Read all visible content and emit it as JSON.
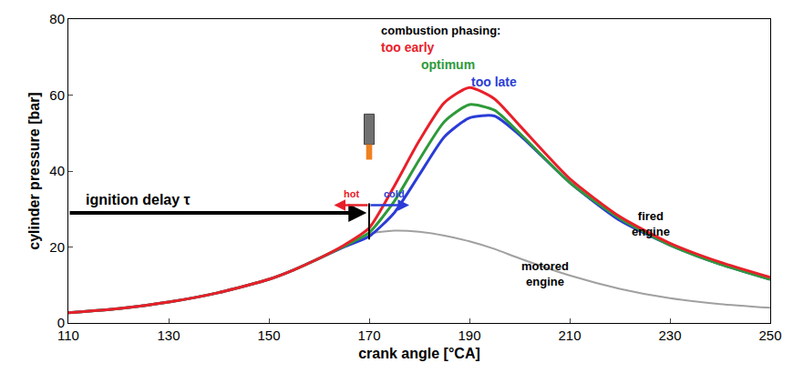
{
  "chart_data": {
    "type": "line",
    "xlabel": "crank angle [°CA]",
    "ylabel": "cylinder pressure [bar]",
    "x": [
      110,
      120,
      130,
      140,
      150,
      155,
      160,
      165,
      170,
      175,
      180,
      185,
      190,
      195,
      200,
      210,
      220,
      230,
      240,
      250
    ],
    "series": [
      {
        "name": "motored engine",
        "color": "#a0a0a0",
        "values": [
          2.7,
          3.8,
          5.5,
          8,
          11.5,
          14,
          17,
          20,
          23.5,
          24.3,
          24,
          23,
          21.5,
          19.5,
          17,
          12.5,
          9,
          6.5,
          5,
          4
        ]
      },
      {
        "name": "too late",
        "color": "#2a3cd6",
        "values": [
          2.7,
          3.8,
          5.5,
          8,
          11.5,
          14,
          17,
          20,
          22.8,
          29,
          39,
          49,
          54,
          54.5,
          49.5,
          37,
          27,
          20.5,
          15.5,
          11.5
        ]
      },
      {
        "name": "optimum",
        "color": "#2e9a3a",
        "values": [
          2.7,
          3.8,
          5.5,
          8,
          11.5,
          14,
          17,
          20.2,
          23.8,
          32,
          43,
          53,
          57.5,
          56,
          50,
          37,
          27.5,
          20.5,
          15.5,
          11.5
        ]
      },
      {
        "name": "too early",
        "color": "#e8202a",
        "values": [
          2.7,
          3.8,
          5.5,
          8,
          11.5,
          14,
          17,
          20.5,
          25,
          36,
          48,
          58,
          62,
          59,
          52,
          38,
          28,
          21,
          16,
          12
        ]
      }
    ],
    "annotations": [
      "combustion phasing:",
      "ignition delay τ",
      "hot",
      "cold",
      "fired engine"
    ],
    "xlim": [
      110,
      250
    ],
    "ylim": [
      0,
      80
    ],
    "xticks": [
      110,
      130,
      150,
      170,
      190,
      210,
      230,
      250
    ],
    "yticks": [
      0,
      20,
      40,
      60,
      80
    ],
    "grid": false
  }
}
